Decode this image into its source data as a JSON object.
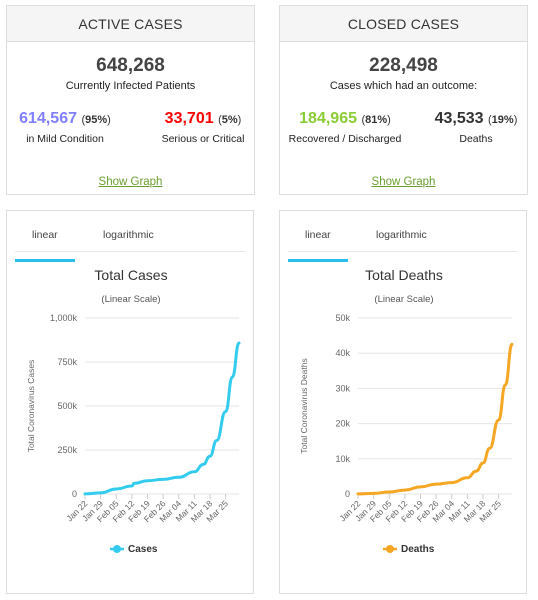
{
  "active": {
    "title": "ACTIVE CASES",
    "total": "648,268",
    "total_label": "Currently Infected Patients",
    "mild": {
      "value": "614,567",
      "pct": "95%",
      "label": "in Mild Condition",
      "color": "#8080ff"
    },
    "serious": {
      "value": "33,701",
      "pct": "5%",
      "label": "Serious or Critical",
      "color": "#ff0000"
    },
    "link": "Show Graph"
  },
  "closed": {
    "title": "CLOSED CASES",
    "total": "228,498",
    "total_label": "Cases which had an outcome:",
    "recovered": {
      "value": "184,965",
      "pct": "81%",
      "label": "Recovered / Discharged",
      "color": "#8acc35"
    },
    "deaths": {
      "value": "43,533",
      "pct": "19%",
      "label": "Deaths",
      "color": "#333333"
    },
    "link": "Show Graph"
  },
  "tabs": {
    "linear": "linear",
    "log": "logarithmic"
  },
  "chart_data": [
    {
      "type": "line",
      "title": "Total Cases",
      "subtitle": "(Linear Scale)",
      "ylabel": "Total Coronavirus Cases",
      "legend": "Cases",
      "color": "#33ccee",
      "ylim": [
        0,
        1000000
      ],
      "yticks": [
        "0",
        "250k",
        "500k",
        "750k",
        "1,000k"
      ],
      "ytick_values": [
        0,
        250000,
        500000,
        750000,
        1000000
      ],
      "xticks": [
        "Jan 22",
        "Jan 29",
        "Feb 05",
        "Feb 12",
        "Feb 19",
        "Feb 26",
        "Mar 04",
        "Mar 11",
        "Mar 18",
        "Mar 25"
      ],
      "x": [
        "Jan 22",
        "Jan 29",
        "Feb 05",
        "Feb 12",
        "Feb 13",
        "Feb 19",
        "Feb 26",
        "Mar 04",
        "Mar 11",
        "Mar 15",
        "Mar 18",
        "Mar 21",
        "Mar 25",
        "Mar 28",
        "Mar 31"
      ],
      "values": [
        580,
        6100,
        28300,
        45200,
        60400,
        75700,
        83000,
        95000,
        126000,
        168000,
        215000,
        304000,
        468000,
        664000,
        858000
      ]
    },
    {
      "type": "line",
      "title": "Total Deaths",
      "subtitle": "(Linear Scale)",
      "ylabel": "Total Coronavirus Deaths",
      "legend": "Deaths",
      "color": "#f5a623",
      "ylim": [
        0,
        50000
      ],
      "yticks": [
        "0",
        "10k",
        "20k",
        "30k",
        "40k",
        "50k"
      ],
      "ytick_values": [
        0,
        10000,
        20000,
        30000,
        40000,
        50000
      ],
      "xticks": [
        "Jan 22",
        "Jan 29",
        "Feb 05",
        "Feb 12",
        "Feb 19",
        "Feb 26",
        "Mar 04",
        "Mar 11",
        "Mar 18",
        "Mar 25"
      ],
      "x": [
        "Jan 22",
        "Jan 29",
        "Feb 05",
        "Feb 12",
        "Feb 19",
        "Feb 26",
        "Mar 04",
        "Mar 11",
        "Mar 15",
        "Mar 18",
        "Mar 21",
        "Mar 25",
        "Mar 28",
        "Mar 31"
      ],
      "values": [
        17,
        170,
        565,
        1120,
        2010,
        2800,
        3250,
        4620,
        6500,
        8800,
        13000,
        21000,
        31000,
        42500
      ]
    }
  ]
}
